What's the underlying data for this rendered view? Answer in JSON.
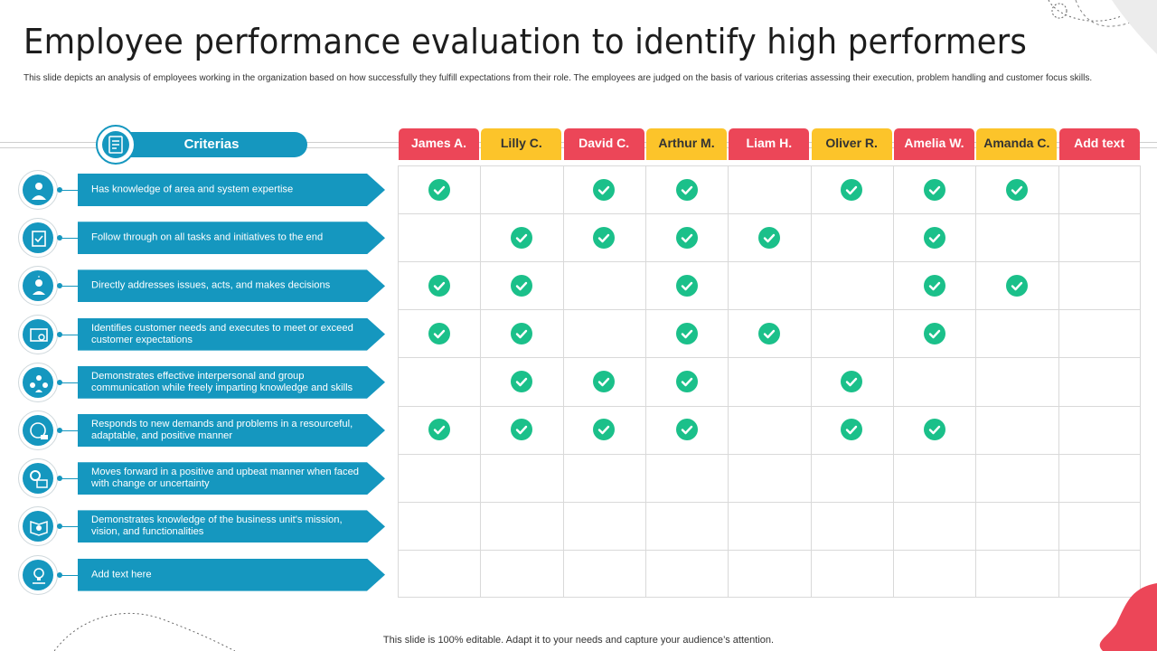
{
  "title": "Employee performance evaluation to identify high performers",
  "subtitle": "This slide depicts an analysis of employees working in the organization based on how successfully they fulfill expectations from their role. The employees are judged on the basis of various criterias assessing their execution, problem handling and customer focus skills.",
  "criterias_label": "Criterias",
  "columns": [
    {
      "label": "James A.",
      "color": "red"
    },
    {
      "label": "Lilly C.",
      "color": "yellow"
    },
    {
      "label": "David C.",
      "color": "red"
    },
    {
      "label": "Arthur M.",
      "color": "yellow"
    },
    {
      "label": "Liam H.",
      "color": "red"
    },
    {
      "label": "Oliver R.",
      "color": "yellow"
    },
    {
      "label": "Amelia W.",
      "color": "red"
    },
    {
      "label": "Amanda C.",
      "color": "yellow"
    },
    {
      "label": "Add text",
      "color": "red"
    }
  ],
  "rows": [
    {
      "text": "Has knowledge of area and system expertise",
      "icon": "expert-icon",
      "checks": [
        1,
        0,
        1,
        1,
        0,
        1,
        1,
        1,
        0
      ]
    },
    {
      "text": "Follow through on all tasks and initiatives to the end",
      "icon": "task-icon",
      "checks": [
        0,
        1,
        1,
        1,
        1,
        0,
        1,
        0,
        0
      ]
    },
    {
      "text": "Directly addresses issues, acts, and makes decisions",
      "icon": "decision-icon",
      "checks": [
        1,
        1,
        0,
        1,
        0,
        0,
        1,
        1,
        0
      ]
    },
    {
      "text": "Identifies customer needs and executes to meet or exceed customer expectations",
      "icon": "customer-icon",
      "checks": [
        1,
        1,
        0,
        1,
        1,
        0,
        1,
        0,
        0
      ]
    },
    {
      "text": "Demonstrates effective interpersonal and group communication while freely imparting knowledge and skills",
      "icon": "team-icon",
      "checks": [
        0,
        1,
        1,
        1,
        0,
        1,
        0,
        0,
        0
      ]
    },
    {
      "text": "Responds to new demands and problems in a resourceful, adaptable, and positive manner",
      "icon": "adapt-icon",
      "checks": [
        1,
        1,
        1,
        1,
        0,
        1,
        1,
        0,
        0
      ]
    },
    {
      "text": "Moves forward in a positive and upbeat manner when faced with change or uncertainty",
      "icon": "gear-icon",
      "checks": [
        0,
        0,
        0,
        0,
        0,
        0,
        0,
        0,
        0
      ]
    },
    {
      "text": "Demonstrates knowledge of the business unit's mission, vision, and functionalities",
      "icon": "mission-icon",
      "checks": [
        0,
        0,
        0,
        0,
        0,
        0,
        0,
        0,
        0
      ]
    },
    {
      "text": "Add text here",
      "icon": "lightbulb-icon",
      "checks": [
        0,
        0,
        0,
        0,
        0,
        0,
        0,
        0,
        0
      ]
    }
  ],
  "colors": {
    "blue": "#1597bf",
    "red": "#ec4658",
    "yellow": "#fcc42a",
    "green": "#1bc08a"
  },
  "footer": "This slide is 100% editable. Adapt it to your needs and capture your audience’s attention."
}
